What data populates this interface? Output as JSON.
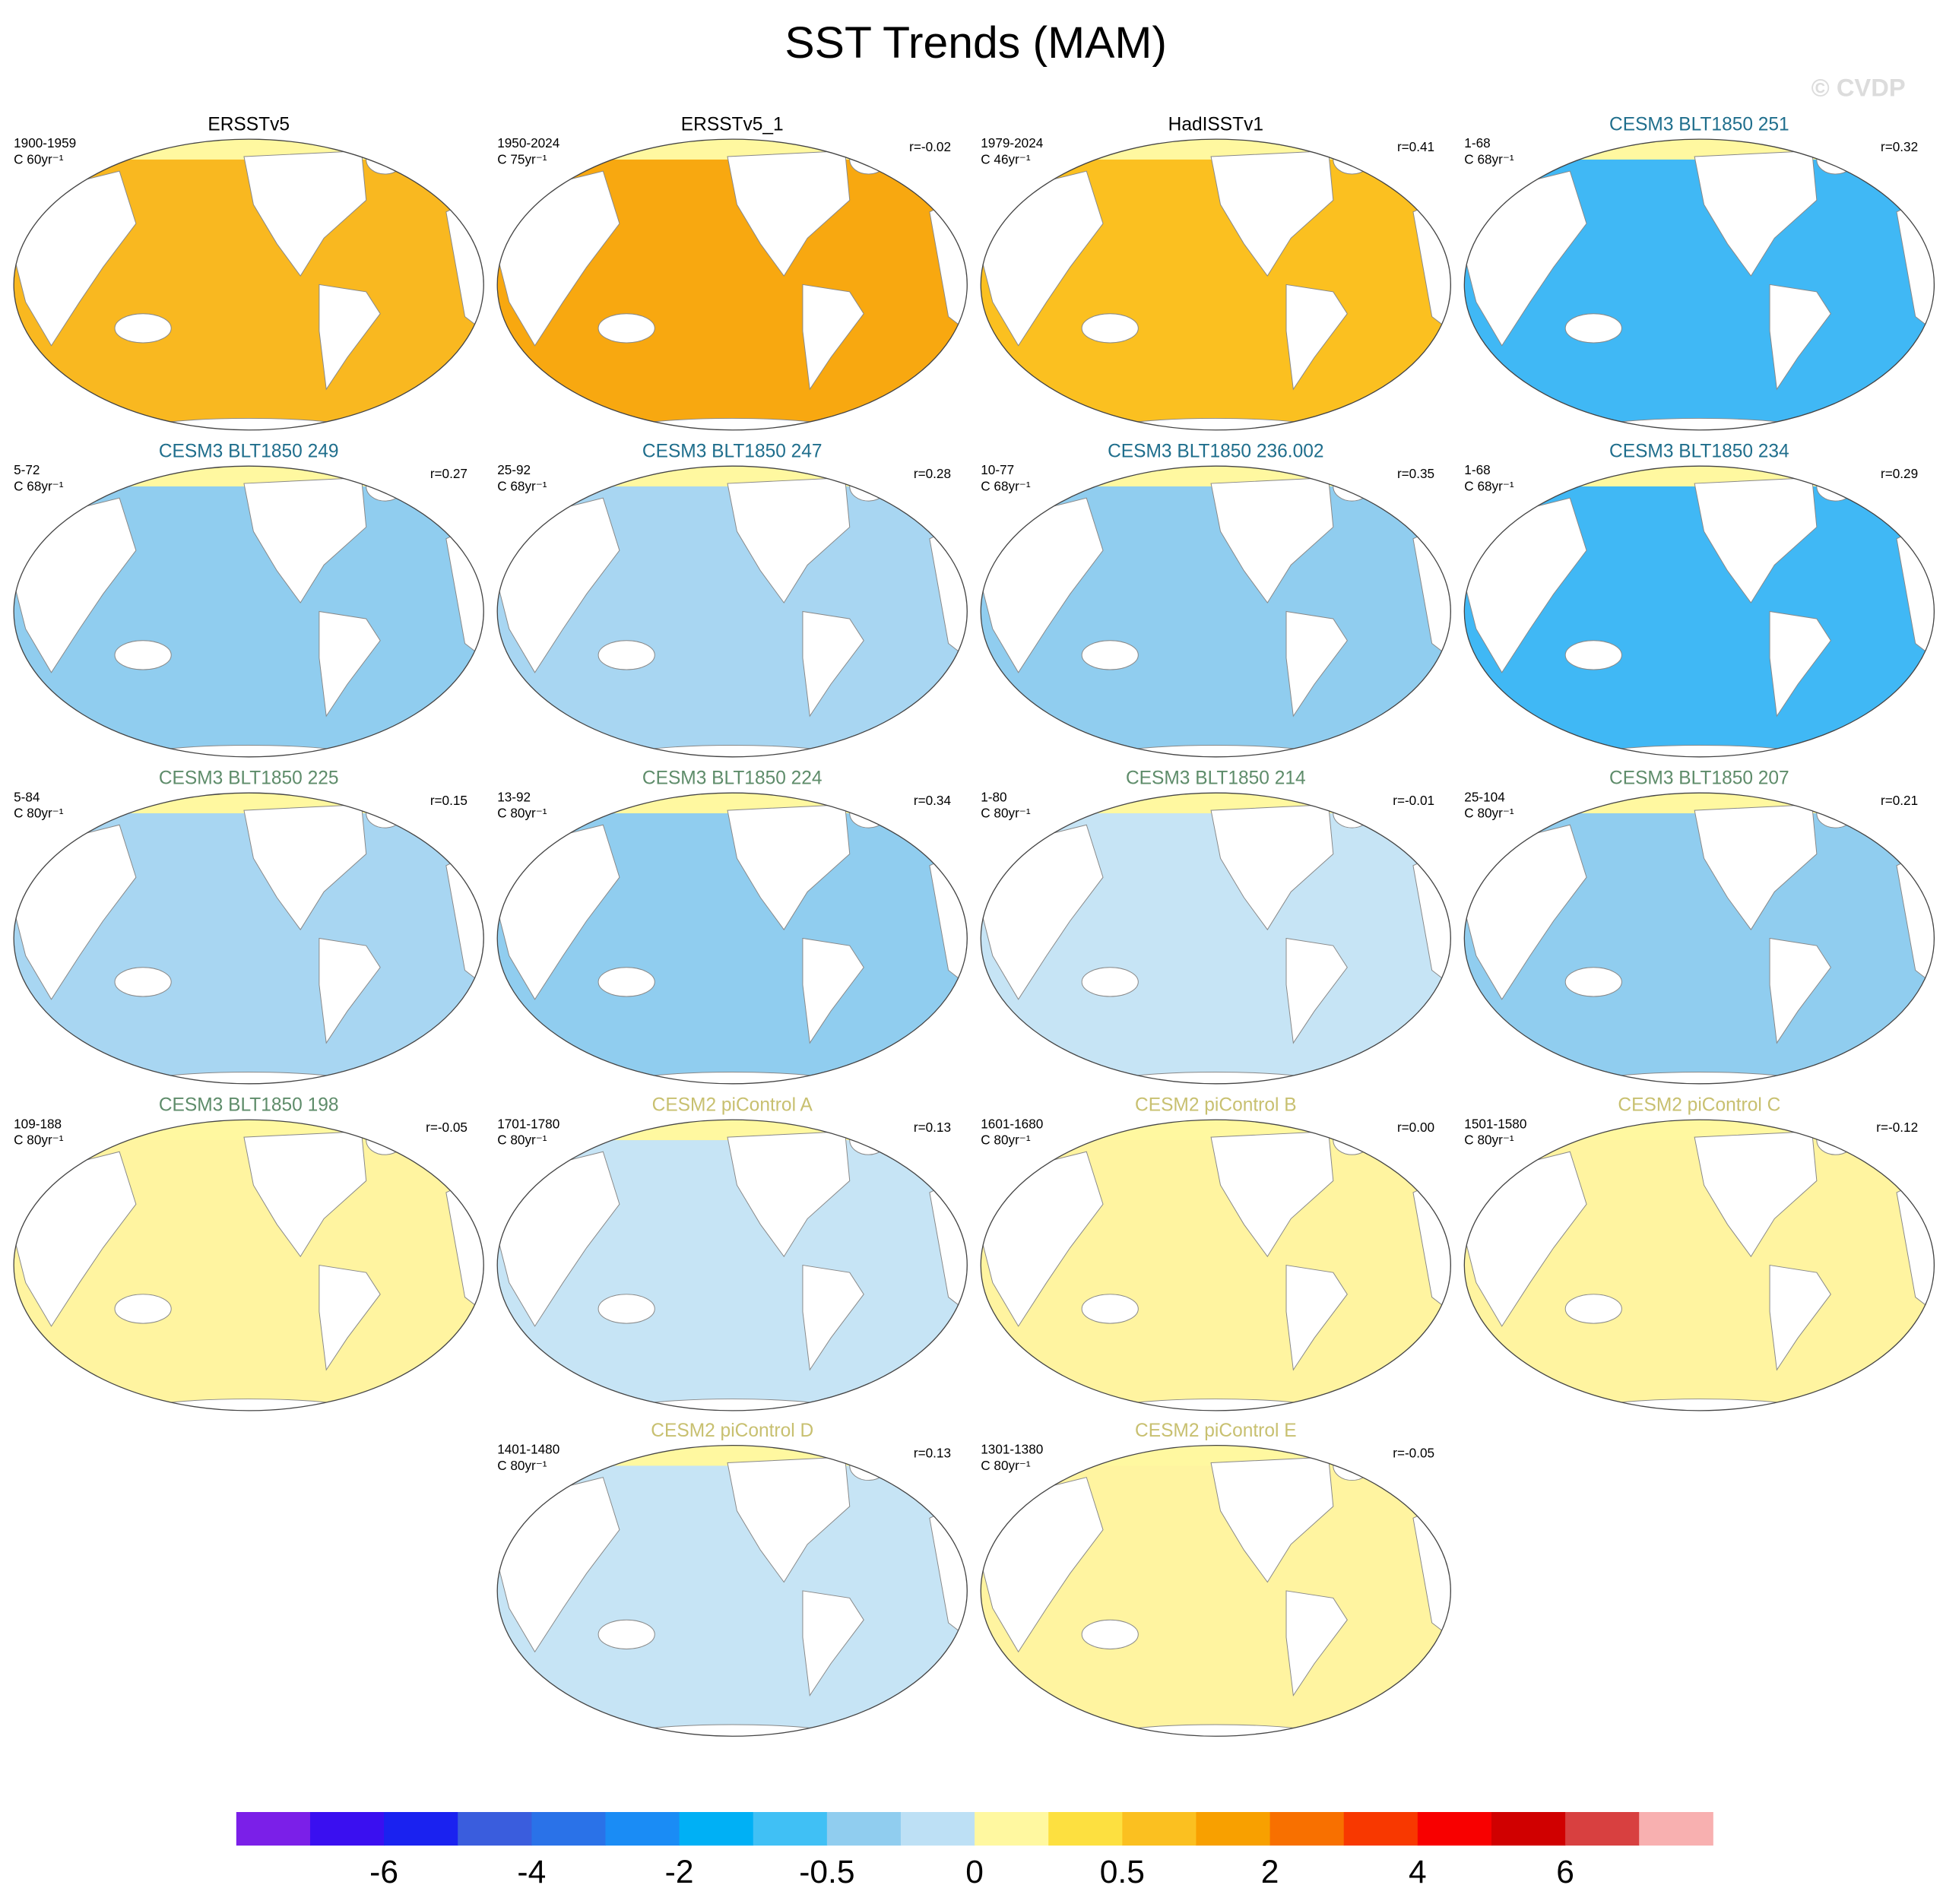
{
  "title": "SST Trends (MAM)",
  "watermark": "© CVDP",
  "rows": [
    [
      {
        "title": "ERSSTv5",
        "title_color": "#000000",
        "period": "1900-1959",
        "units": "C 60yr⁻¹",
        "color": "#f9b820"
      },
      {
        "title": "ERSSTv5_1",
        "title_color": "#000000",
        "period": "1950-2024",
        "units": "C 75yr⁻¹",
        "r": "r=-0.02",
        "color": "#f8a810"
      },
      {
        "title": "HadISSTv1",
        "title_color": "#000000",
        "period": "1979-2024",
        "units": "C 46yr⁻¹",
        "r": "r=0.41",
        "color": "#fbc020"
      },
      {
        "title": "CESM3 BLT1850 251",
        "title_color": "#1f6e8c",
        "period": "1-68",
        "units": "C 68yr⁻¹",
        "r": "r=0.32",
        "color": "#40b8f5"
      }
    ],
    [
      {
        "title": "CESM3 BLT1850 249",
        "title_color": "#1f6e8c",
        "period": "5-72",
        "units": "C 68yr⁻¹",
        "r": "r=0.27",
        "color": "#90cdef"
      },
      {
        "title": "CESM3 BLT1850 247",
        "title_color": "#1f6e8c",
        "period": "25-92",
        "units": "C 68yr⁻¹",
        "r": "r=0.28",
        "color": "#a8d6f2"
      },
      {
        "title": "CESM3 BLT1850 236.002",
        "title_color": "#1f6e8c",
        "period": "10-77",
        "units": "C 68yr⁻¹",
        "r": "r=0.35",
        "color": "#90cdef"
      },
      {
        "title": "CESM3 BLT1850 234",
        "title_color": "#1f6e8c",
        "period": "1-68",
        "units": "C 68yr⁻¹",
        "r": "r=0.29",
        "color": "#40b8f5"
      }
    ],
    [
      {
        "title": "CESM3 BLT1850 225",
        "title_color": "#5e8c6a",
        "period": "5-84",
        "units": "C 80yr⁻¹",
        "r": "r=0.15",
        "color": "#a8d6f2"
      },
      {
        "title": "CESM3 BLT1850 224",
        "title_color": "#5e8c6a",
        "period": "13-92",
        "units": "C 80yr⁻¹",
        "r": "r=0.34",
        "color": "#90cdef"
      },
      {
        "title": "CESM3 BLT1850 214",
        "title_color": "#5e8c6a",
        "period": "1-80",
        "units": "C 80yr⁻¹",
        "r": "r=-0.01",
        "color": "#c6e4f5"
      },
      {
        "title": "CESM3 BLT1850 207",
        "title_color": "#5e8c6a",
        "period": "25-104",
        "units": "C 80yr⁻¹",
        "r": "r=0.21",
        "color": "#90cdef"
      }
    ],
    [
      {
        "title": "CESM3 BLT1850 198",
        "title_color": "#5e8c6a",
        "period": "109-188",
        "units": "C 80yr⁻¹",
        "r": "r=-0.05",
        "color": "#fff4a0"
      },
      {
        "title": "CESM2 piControl A",
        "title_color": "#c8c070",
        "period": "1701-1780",
        "units": "C 80yr⁻¹",
        "r": "r=0.13",
        "color": "#c6e4f5"
      },
      {
        "title": "CESM2 piControl B",
        "title_color": "#c8c070",
        "period": "1601-1680",
        "units": "C 80yr⁻¹",
        "r": "r=0.00",
        "color": "#fff4a0"
      },
      {
        "title": "CESM2 piControl C",
        "title_color": "#c8c070",
        "period": "1501-1580",
        "units": "C 80yr⁻¹",
        "r": "r=-0.12",
        "color": "#fff4a0"
      }
    ],
    [
      {
        "title": "CESM2 piControl D",
        "title_color": "#c8c070",
        "period": "1401-1480",
        "units": "C 80yr⁻¹",
        "r": "r=0.13",
        "color": "#c6e4f5"
      },
      {
        "title": "CESM2 piControl E",
        "title_color": "#c8c070",
        "period": "1301-1380",
        "units": "C 80yr⁻¹",
        "r": "r=-0.05",
        "color": "#fff4a0"
      }
    ]
  ],
  "colorbar": {
    "colors": [
      "#7b1fe8",
      "#3a0ff0",
      "#1a22f0",
      "#3a5ddd",
      "#2a72e8",
      "#1a8cf5",
      "#00b0f5",
      "#40c0f5",
      "#90cdef",
      "#bde0f5",
      "#fff8a0",
      "#fde040",
      "#fbc020",
      "#f8a000",
      "#f87000",
      "#f83800",
      "#f80000",
      "#d00000",
      "#d84040",
      "#f8b0b0"
    ],
    "labels": [
      "-6",
      "-4",
      "-2",
      "-0.5",
      "0",
      "0.5",
      "2",
      "4",
      "6"
    ]
  }
}
